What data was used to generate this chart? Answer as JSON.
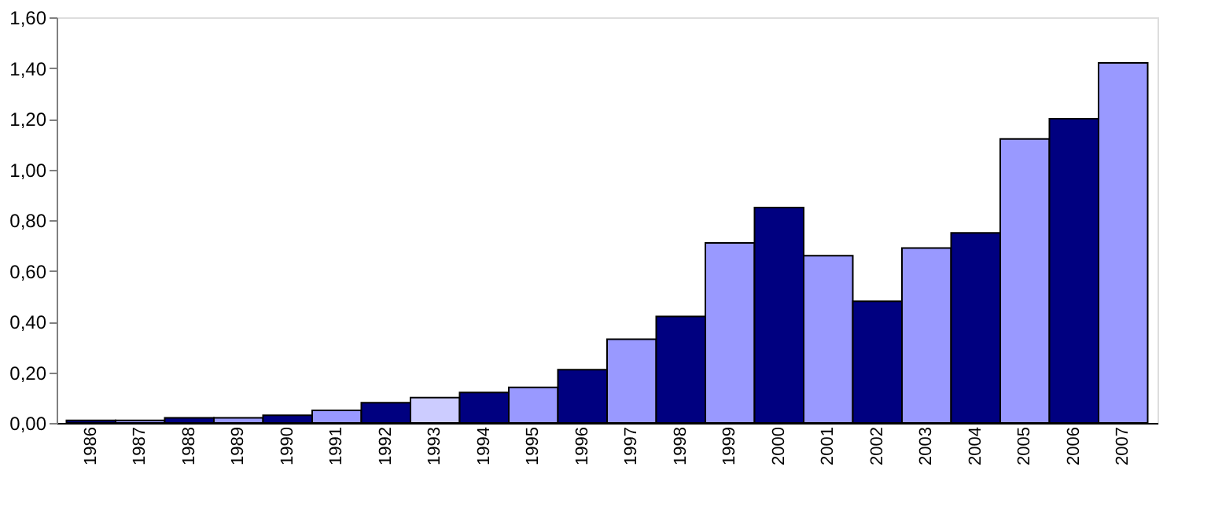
{
  "chart_data": {
    "type": "bar",
    "categories": [
      "1986",
      "1987",
      "1988",
      "1989",
      "1990",
      "1991",
      "1992",
      "1993",
      "1994",
      "1995",
      "1996",
      "1997",
      "1998",
      "1999",
      "2000",
      "2001",
      "2002",
      "2003",
      "2004",
      "2005",
      "2006",
      "2007"
    ],
    "values": [
      0.01,
      0.01,
      0.02,
      0.02,
      0.03,
      0.05,
      0.08,
      0.1,
      0.12,
      0.14,
      0.21,
      0.33,
      0.42,
      0.71,
      0.85,
      0.66,
      0.48,
      0.69,
      0.75,
      1.12,
      1.2,
      1.42
    ],
    "colors": [
      "#000080",
      "#9999ff",
      "#000080",
      "#9999ff",
      "#000080",
      "#9999ff",
      "#000080",
      "#ccccff",
      "#000080",
      "#9999ff",
      "#000080",
      "#9999ff",
      "#000080",
      "#9999ff",
      "#000080",
      "#9999ff",
      "#000080",
      "#9999ff",
      "#000080",
      "#9999ff",
      "#000080",
      "#9999ff"
    ],
    "ylim": [
      0,
      1.6
    ],
    "yticks": [
      {
        "value": 0,
        "label": "0,00"
      },
      {
        "value": 0.2,
        "label": "0,20"
      },
      {
        "value": 0.4,
        "label": "0,40"
      },
      {
        "value": 0.6,
        "label": "0,60"
      },
      {
        "value": 0.8,
        "label": "0,80"
      },
      {
        "value": 1.0,
        "label": "1,00"
      },
      {
        "value": 1.2,
        "label": "1,20"
      },
      {
        "value": 1.4,
        "label": "1,40"
      },
      {
        "value": 1.6,
        "label": "1,60"
      }
    ],
    "grid": false
  }
}
